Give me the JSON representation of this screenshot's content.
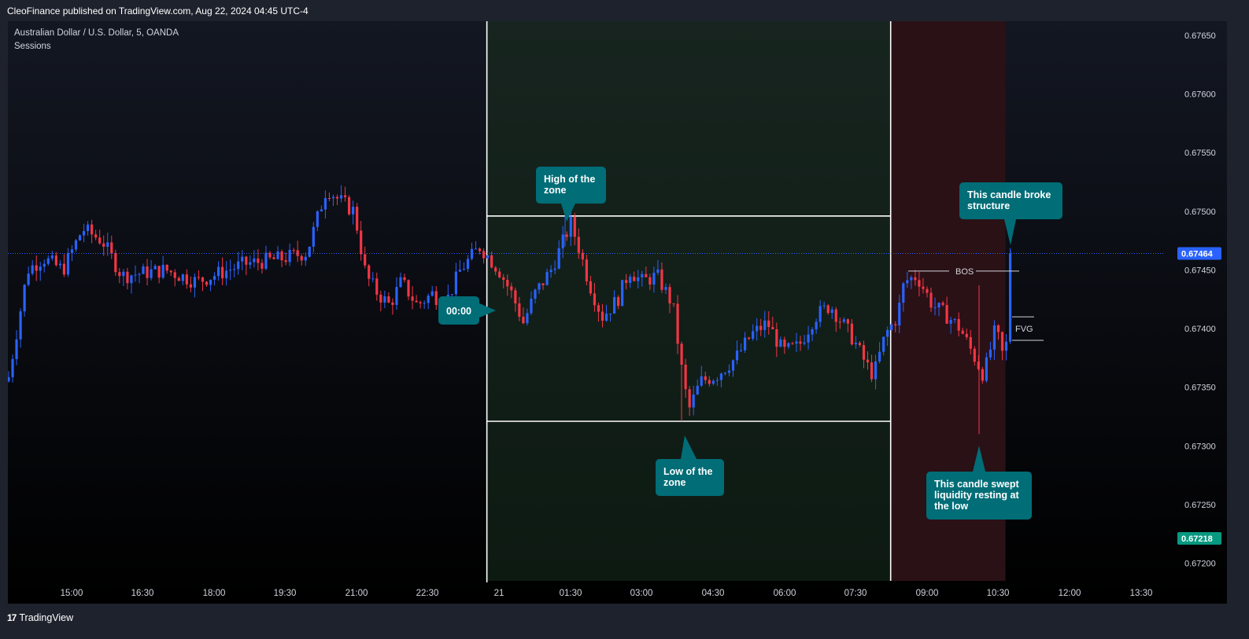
{
  "header": {
    "publisher": "CleoFinance published on TradingView.com, Aug 22, 2024 04:45 UTC-4"
  },
  "footer": {
    "brand_name": "TradingView",
    "brand_icon": "tradingview-logo-icon"
  },
  "colors": {
    "background": "#000000",
    "chrome": "#1e222d",
    "bull": "#2962ff",
    "bear": "#f23645",
    "callout": "#006d77",
    "last_price_tag": "#2962ff",
    "low_tag": "#089981",
    "london_session": "#0d1a12",
    "ny_session": "#2a1116"
  },
  "chart_data": {
    "type": "candlestick",
    "symbol_title": "Australian Dollar / U.S. Dollar, 5, OANDA",
    "indicator": "Sessions",
    "x_ticks": [
      "15:00",
      "16:30",
      "18:00",
      "19:30",
      "21:00",
      "22:30",
      "21",
      "01:30",
      "03:00",
      "04:30",
      "06:00",
      "07:30",
      "09:00",
      "10:30",
      "12:00",
      "13:30"
    ],
    "y_ticks": [
      "0.67650",
      "0.67600",
      "0.67550",
      "0.67500",
      "0.67450",
      "0.67400",
      "0.67350",
      "0.67300",
      "0.67250",
      "0.67200"
    ],
    "ylim": [
      0.67185,
      0.67662
    ],
    "last_price": "0.67464",
    "session_low_price": "0.67218",
    "zone": {
      "high": 0.67496,
      "low": 0.67321,
      "start": "00:00",
      "end": "08:30"
    },
    "ny_session": {
      "start": "08:30",
      "end": "10:55"
    },
    "bos_level": 0.67449,
    "fvg_top": 0.6741,
    "fvg_bottom": 0.6739,
    "annotations": {
      "high_zone": "High of the zone",
      "low_zone": "Low of the zone",
      "broke_structure": "This candle broke structure",
      "swept_liquidity": "This candle swept liquidity resting at the low",
      "session_open": "00:00",
      "bos": "BOS",
      "fvg": "FVG"
    },
    "price_anchors": [
      [
        0,
        0.67355
      ],
      [
        8,
        0.67385
      ],
      [
        25,
        0.6745
      ],
      [
        45,
        0.6746
      ],
      [
        70,
        0.6745
      ],
      [
        95,
        0.67485
      ],
      [
        120,
        0.67475
      ],
      [
        145,
        0.67445
      ],
      [
        200,
        0.6745
      ],
      [
        240,
        0.6744
      ],
      [
        300,
        0.67455
      ],
      [
        350,
        0.6746
      ],
      [
        380,
        0.67465
      ],
      [
        405,
        0.6752
      ],
      [
        420,
        0.6751
      ],
      [
        440,
        0.675
      ],
      [
        455,
        0.67445
      ],
      [
        470,
        0.6743
      ],
      [
        485,
        0.6742
      ],
      [
        500,
        0.6744
      ],
      [
        520,
        0.6742
      ],
      [
        540,
        0.6743
      ],
      [
        555,
        0.6742
      ],
      [
        575,
        0.6745
      ],
      [
        600,
        0.6747
      ],
      [
        624,
        0.6745
      ],
      [
        640,
        0.6743
      ],
      [
        655,
        0.67405
      ],
      [
        670,
        0.6743
      ],
      [
        690,
        0.6745
      ],
      [
        703,
        0.6747
      ],
      [
        715,
        0.6749
      ],
      [
        725,
        0.6747
      ],
      [
        738,
        0.6744
      ],
      [
        755,
        0.6741
      ],
      [
        775,
        0.67425
      ],
      [
        790,
        0.6745
      ],
      [
        805,
        0.6744
      ],
      [
        825,
        0.67445
      ],
      [
        845,
        0.6742
      ],
      [
        855,
        0.6737
      ],
      [
        865,
        0.6733
      ],
      [
        880,
        0.67355
      ],
      [
        900,
        0.6736
      ],
      [
        925,
        0.67375
      ],
      [
        945,
        0.67395
      ],
      [
        965,
        0.67405
      ],
      [
        985,
        0.6738
      ],
      [
        1005,
        0.67385
      ],
      [
        1025,
        0.6741
      ],
      [
        1045,
        0.6742
      ],
      [
        1060,
        0.67405
      ],
      [
        1075,
        0.6739
      ],
      [
        1090,
        0.6737
      ],
      [
        1100,
        0.6736
      ],
      [
        1115,
        0.67395
      ],
      [
        1130,
        0.6741
      ],
      [
        1139,
        0.6744
      ],
      [
        1155,
        0.67445
      ],
      [
        1175,
        0.6742
      ],
      [
        1195,
        0.6741
      ],
      [
        1210,
        0.674
      ],
      [
        1225,
        0.6738
      ],
      [
        1240,
        0.6736
      ],
      [
        1255,
        0.674
      ],
      [
        1267,
        0.6737
      ],
      [
        1276,
        0.67464
      ]
    ]
  }
}
